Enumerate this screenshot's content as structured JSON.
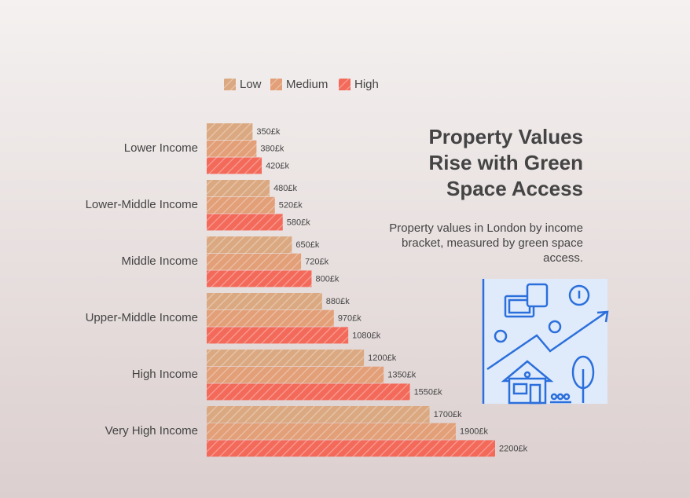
{
  "chart_data": {
    "type": "bar",
    "orientation": "horizontal",
    "title": "Property Values Rise with Green Space Access",
    "subtitle": "Property values in London by income bracket, measured by green space access.",
    "categories": [
      "Lower Income",
      "Lower-Middle Income",
      "Middle Income",
      "Upper-Middle Income",
      "High Income",
      "Very High Income"
    ],
    "series": [
      {
        "name": "Low",
        "color": "#dba981",
        "values": [
          350,
          480,
          650,
          880,
          1200,
          1700
        ],
        "value_labels": [
          "350£k",
          "480£k",
          "650£k",
          "880£k",
          "1200£k",
          "1700£k"
        ]
      },
      {
        "name": "Medium",
        "color": "#e29f78",
        "values": [
          380,
          520,
          720,
          970,
          1350,
          1900
        ],
        "value_labels": [
          "380£k",
          "520£k",
          "720£k",
          "970£k",
          "1350£k",
          "1900£k"
        ]
      },
      {
        "name": "High",
        "color": "#f36a5a",
        "values": [
          420,
          580,
          800,
          1080,
          1550,
          2200
        ],
        "value_labels": [
          "420£k",
          "580£k",
          "800£k",
          "1080£k",
          "1550£k",
          "2200£k"
        ]
      }
    ],
    "legend": "top"
  }
}
